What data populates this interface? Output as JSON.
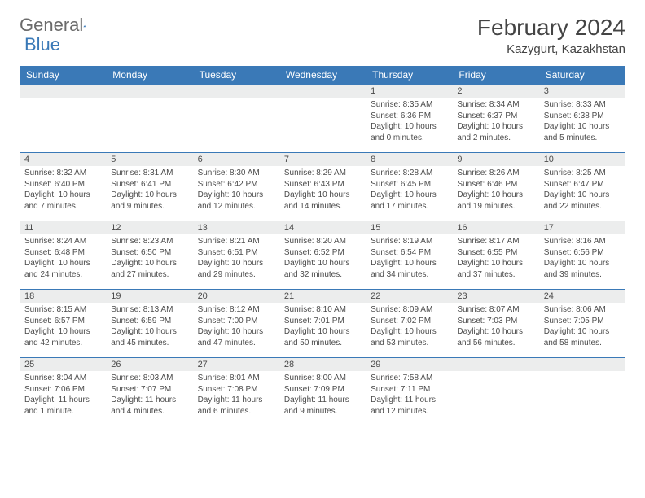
{
  "brand": {
    "part1": "General",
    "part2": "Blue"
  },
  "title": "February 2024",
  "location": "Kazygurt, Kazakhstan",
  "colors": {
    "accent": "#3a79b7",
    "headerText": "#ffffff",
    "dayBg": "#eceded",
    "text": "#4b4b4b",
    "bg": "#ffffff"
  },
  "fonts": {
    "title_size": 28,
    "location_size": 15,
    "header_size": 12,
    "daynum_size": 11,
    "body_size": 10
  },
  "columns": [
    "Sunday",
    "Monday",
    "Tuesday",
    "Wednesday",
    "Thursday",
    "Friday",
    "Saturday"
  ],
  "weeks": [
    [
      null,
      null,
      null,
      null,
      {
        "n": "1",
        "sr": "8:35 AM",
        "ss": "6:36 PM",
        "dl": "10 hours and 0 minutes."
      },
      {
        "n": "2",
        "sr": "8:34 AM",
        "ss": "6:37 PM",
        "dl": "10 hours and 2 minutes."
      },
      {
        "n": "3",
        "sr": "8:33 AM",
        "ss": "6:38 PM",
        "dl": "10 hours and 5 minutes."
      }
    ],
    [
      {
        "n": "4",
        "sr": "8:32 AM",
        "ss": "6:40 PM",
        "dl": "10 hours and 7 minutes."
      },
      {
        "n": "5",
        "sr": "8:31 AM",
        "ss": "6:41 PM",
        "dl": "10 hours and 9 minutes."
      },
      {
        "n": "6",
        "sr": "8:30 AM",
        "ss": "6:42 PM",
        "dl": "10 hours and 12 minutes."
      },
      {
        "n": "7",
        "sr": "8:29 AM",
        "ss": "6:43 PM",
        "dl": "10 hours and 14 minutes."
      },
      {
        "n": "8",
        "sr": "8:28 AM",
        "ss": "6:45 PM",
        "dl": "10 hours and 17 minutes."
      },
      {
        "n": "9",
        "sr": "8:26 AM",
        "ss": "6:46 PM",
        "dl": "10 hours and 19 minutes."
      },
      {
        "n": "10",
        "sr": "8:25 AM",
        "ss": "6:47 PM",
        "dl": "10 hours and 22 minutes."
      }
    ],
    [
      {
        "n": "11",
        "sr": "8:24 AM",
        "ss": "6:48 PM",
        "dl": "10 hours and 24 minutes."
      },
      {
        "n": "12",
        "sr": "8:23 AM",
        "ss": "6:50 PM",
        "dl": "10 hours and 27 minutes."
      },
      {
        "n": "13",
        "sr": "8:21 AM",
        "ss": "6:51 PM",
        "dl": "10 hours and 29 minutes."
      },
      {
        "n": "14",
        "sr": "8:20 AM",
        "ss": "6:52 PM",
        "dl": "10 hours and 32 minutes."
      },
      {
        "n": "15",
        "sr": "8:19 AM",
        "ss": "6:54 PM",
        "dl": "10 hours and 34 minutes."
      },
      {
        "n": "16",
        "sr": "8:17 AM",
        "ss": "6:55 PM",
        "dl": "10 hours and 37 minutes."
      },
      {
        "n": "17",
        "sr": "8:16 AM",
        "ss": "6:56 PM",
        "dl": "10 hours and 39 minutes."
      }
    ],
    [
      {
        "n": "18",
        "sr": "8:15 AM",
        "ss": "6:57 PM",
        "dl": "10 hours and 42 minutes."
      },
      {
        "n": "19",
        "sr": "8:13 AM",
        "ss": "6:59 PM",
        "dl": "10 hours and 45 minutes."
      },
      {
        "n": "20",
        "sr": "8:12 AM",
        "ss": "7:00 PM",
        "dl": "10 hours and 47 minutes."
      },
      {
        "n": "21",
        "sr": "8:10 AM",
        "ss": "7:01 PM",
        "dl": "10 hours and 50 minutes."
      },
      {
        "n": "22",
        "sr": "8:09 AM",
        "ss": "7:02 PM",
        "dl": "10 hours and 53 minutes."
      },
      {
        "n": "23",
        "sr": "8:07 AM",
        "ss": "7:03 PM",
        "dl": "10 hours and 56 minutes."
      },
      {
        "n": "24",
        "sr": "8:06 AM",
        "ss": "7:05 PM",
        "dl": "10 hours and 58 minutes."
      }
    ],
    [
      {
        "n": "25",
        "sr": "8:04 AM",
        "ss": "7:06 PM",
        "dl": "11 hours and 1 minute."
      },
      {
        "n": "26",
        "sr": "8:03 AM",
        "ss": "7:07 PM",
        "dl": "11 hours and 4 minutes."
      },
      {
        "n": "27",
        "sr": "8:01 AM",
        "ss": "7:08 PM",
        "dl": "11 hours and 6 minutes."
      },
      {
        "n": "28",
        "sr": "8:00 AM",
        "ss": "7:09 PM",
        "dl": "11 hours and 9 minutes."
      },
      {
        "n": "29",
        "sr": "7:58 AM",
        "ss": "7:11 PM",
        "dl": "11 hours and 12 minutes."
      },
      null,
      null
    ]
  ],
  "labels": {
    "sunrise": "Sunrise: ",
    "sunset": "Sunset: ",
    "daylight": "Daylight: "
  }
}
